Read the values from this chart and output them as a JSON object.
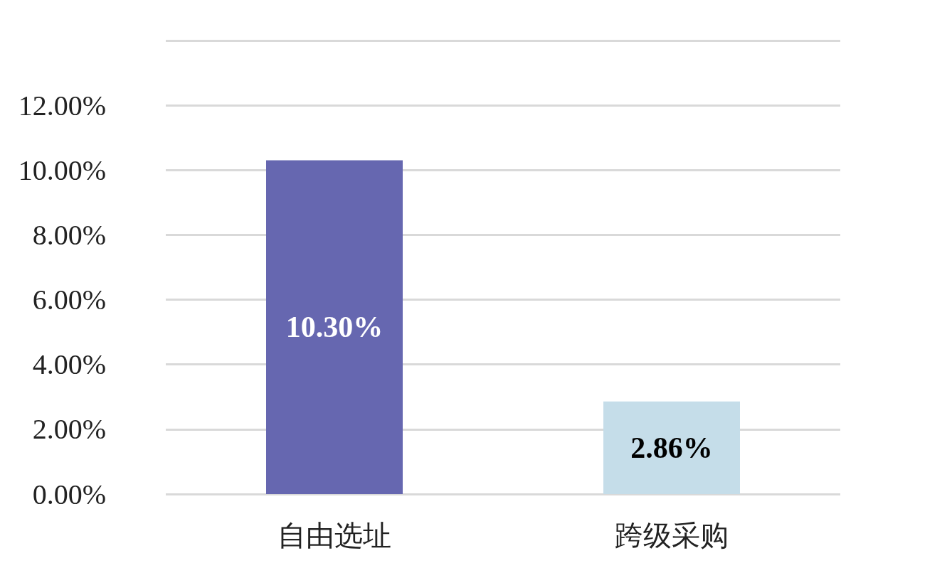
{
  "chart_data": {
    "type": "bar",
    "categories": [
      "自由选址",
      "跨级采购"
    ],
    "values": [
      10.3,
      2.86
    ],
    "colors": [
      "#6667b0",
      "#c5dde9"
    ],
    "value_labels": [
      "10.30%",
      "2.86%"
    ],
    "ylim": [
      0,
      14
    ],
    "yticks": [
      {
        "value": 0,
        "label": "0.00%"
      },
      {
        "value": 2,
        "label": "2.00%"
      },
      {
        "value": 4,
        "label": "4.00%"
      },
      {
        "value": 6,
        "label": "6.00%"
      },
      {
        "value": 8,
        "label": "8.00%"
      },
      {
        "value": 10,
        "label": "10.00%"
      },
      {
        "value": 12,
        "label": "12.00%"
      },
      {
        "value": 14,
        "label": null
      }
    ],
    "grid": "y"
  }
}
